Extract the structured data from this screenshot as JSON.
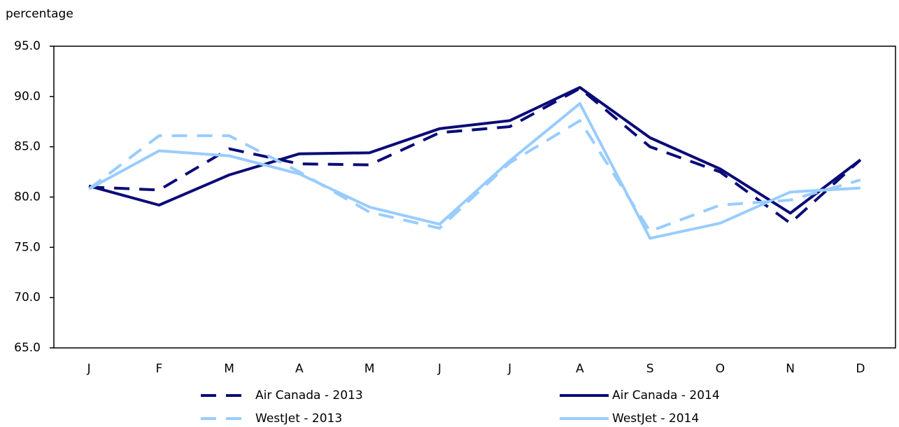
{
  "chart_data": {
    "type": "line",
    "y_label": "percentage",
    "categories": [
      "J",
      "F",
      "M",
      "A",
      "M",
      "J",
      "J",
      "A",
      "S",
      "O",
      "N",
      "D"
    ],
    "series": [
      {
        "name": "Air Canada - 2013",
        "color": "#0a0a78",
        "style": "dashed",
        "values": [
          81.0,
          80.7,
          84.8,
          83.3,
          83.2,
          86.4,
          87.0,
          90.8,
          85.0,
          82.5,
          77.4,
          83.7
        ]
      },
      {
        "name": "Air Canada - 2014",
        "color": "#0a0a78",
        "style": "solid",
        "values": [
          81.1,
          79.2,
          82.2,
          84.3,
          84.4,
          86.8,
          87.6,
          90.9,
          85.9,
          82.8,
          78.4,
          83.7
        ]
      },
      {
        "name": "WestJet - 2013",
        "color": "#99ccff",
        "style": "dashed",
        "values": [
          80.8,
          86.1,
          86.1,
          82.5,
          78.5,
          76.9,
          83.4,
          87.6,
          76.6,
          79.2,
          79.7,
          81.7
        ]
      },
      {
        "name": "WestJet - 2014",
        "color": "#99ccff",
        "style": "solid",
        "values": [
          80.8,
          84.6,
          84.1,
          82.3,
          79.0,
          77.3,
          83.6,
          89.3,
          75.9,
          77.4,
          80.5,
          80.9
        ]
      }
    ],
    "ylim": [
      65,
      95
    ],
    "yticks": [
      {
        "value": 65,
        "label": "65.0"
      },
      {
        "value": 70,
        "label": "70.0"
      },
      {
        "value": 75,
        "label": "75.0"
      },
      {
        "value": 80,
        "label": "80.0"
      },
      {
        "value": 85,
        "label": "85.0"
      },
      {
        "value": 90,
        "label": "90.0"
      },
      {
        "value": 95,
        "label": "95.0"
      }
    ],
    "legend": "bottom"
  }
}
